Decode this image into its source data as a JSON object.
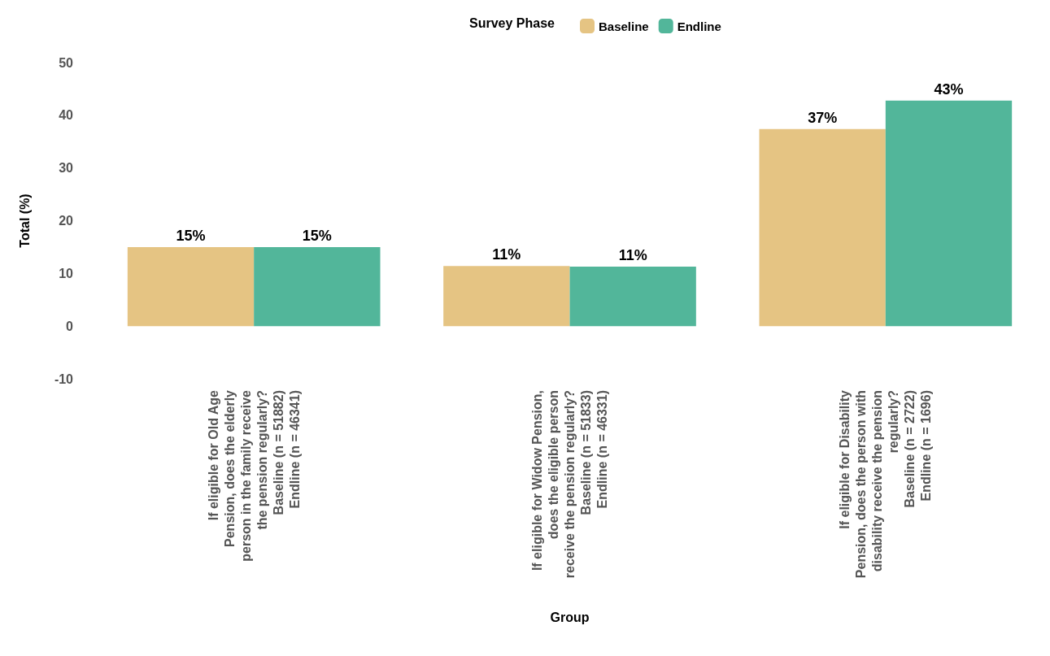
{
  "chart_data": {
    "type": "bar",
    "xlabel": "Group",
    "ylabel": "Total (%)",
    "legend_title": "Survey Phase",
    "categories": [
      "If eligible for Old Age\nPension, does the elderly\nperson in the family receive\nthe pension regularly?\nBaseline (n = 51882)\nEndline (n = 46341)",
      "If eligible for Widow Pension,\ndoes the eligible person\nreceive the pension regularly?\nBaseline (n = 51833)\nEndline (n = 46331)",
      "If eligible for Disability\nPension, does the person with\ndisability receive the pension\nregularly?\nBaseline (n = 2722)\nEndline (n = 1696)"
    ],
    "series": [
      {
        "name": "Baseline",
        "color": "#e5c483",
        "values": [
          15,
          11.4,
          37.4
        ],
        "value_labels": [
          "15%",
          "11%",
          "37%"
        ]
      },
      {
        "name": "Endline",
        "color": "#52b69a",
        "values": [
          15,
          11.3,
          42.8
        ],
        "value_labels": [
          "15%",
          "11%",
          "43%"
        ]
      }
    ],
    "ylim": [
      -10,
      50
    ],
    "yticks": [
      -10,
      0,
      10,
      20,
      30,
      40,
      50
    ],
    "grid": false,
    "legend": "top"
  }
}
